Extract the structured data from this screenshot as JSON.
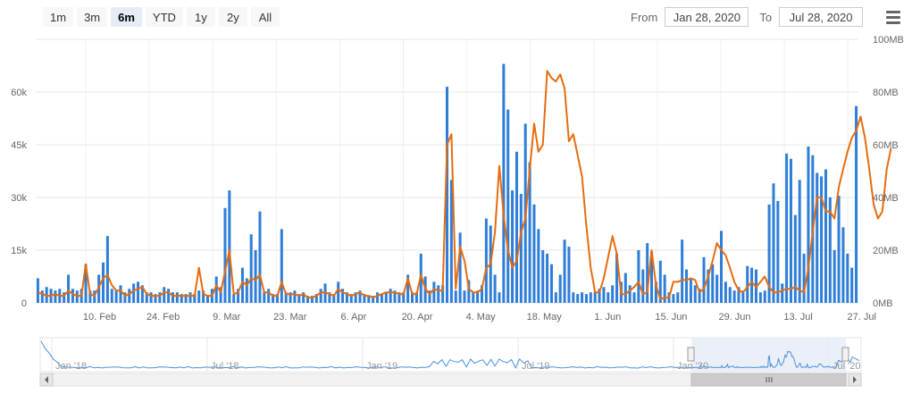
{
  "range_selector": {
    "buttons": [
      {
        "label": "1m",
        "active": false
      },
      {
        "label": "3m",
        "active": false
      },
      {
        "label": "6m",
        "active": true
      },
      {
        "label": "YTD",
        "active": false
      },
      {
        "label": "1y",
        "active": false
      },
      {
        "label": "2y",
        "active": false
      },
      {
        "label": "All",
        "active": false
      }
    ]
  },
  "date_range": {
    "from_label": "From",
    "from_value": "Jan 28, 2020",
    "to_label": "To",
    "to_value": "Jul 28, 2020"
  },
  "menu_icon": "hamburger-menu-icon",
  "colors": {
    "bars": "#2f7ed8",
    "line": "#e66c0f",
    "navigator_line": "#4a90d9",
    "navigator_mask": "#e6ecf6"
  },
  "chart_data": {
    "type": "bar",
    "title": "",
    "x_start": "2020-01-28",
    "x_end": "2020-07-28",
    "x_tick_labels": [
      "10. Feb",
      "24. Feb",
      "9. Mar",
      "23. Mar",
      "6. Apr",
      "20. Apr",
      "4. May",
      "18. May",
      "1. Jun",
      "15. Jun",
      "29. Jun",
      "13. Jul",
      "27. Jul"
    ],
    "y_left": {
      "ticks": [
        "0",
        "15k",
        "30k",
        "45k",
        "60k"
      ],
      "ylim": [
        0,
        75000
      ]
    },
    "y_right": {
      "ticks": [
        "0MB",
        "20MB",
        "40MB",
        "60MB",
        "80MB",
        "100MB"
      ],
      "ylim": [
        0,
        100
      ]
    },
    "series": [
      {
        "type": "bar",
        "axis": "left",
        "values": [
          7000,
          3500,
          4500,
          4000,
          3500,
          4000,
          3000,
          8000,
          4000,
          3500,
          4000,
          11000,
          3500,
          3500,
          8000,
          11500,
          19000,
          4000,
          3500,
          5000,
          3000,
          4000,
          5500,
          6000,
          5000,
          3000,
          3000,
          2500,
          3000,
          4500,
          4000,
          3000,
          3000,
          2500,
          2500,
          3000,
          2500,
          3500,
          3500,
          2000,
          4000,
          7500,
          4500,
          27000,
          32000,
          2500,
          4000,
          10000,
          7000,
          19500,
          15000,
          26000,
          3000,
          4000,
          2500,
          2500,
          21000,
          3000,
          3000,
          3500,
          2500,
          3000,
          2000,
          2000,
          2500,
          4000,
          5500,
          3000,
          2500,
          6000,
          4000,
          3000,
          2500,
          3000,
          3500,
          2500,
          2000,
          2000,
          3000,
          2500,
          3000,
          4000,
          3500,
          3000,
          3000,
          8000,
          3000,
          3000,
          14000,
          7500,
          3500,
          6000,
          5000,
          5000,
          61500,
          35000,
          3500,
          20000,
          3500,
          6500,
          3000,
          3500,
          5000,
          24000,
          22000,
          8000,
          3000,
          68000,
          55000,
          32000,
          43000,
          31000,
          51000,
          40000,
          28000,
          21000,
          15000,
          14000,
          11000,
          3000,
          8000,
          18000,
          16000,
          3000,
          2500,
          3000,
          2500,
          3000,
          3000,
          4000,
          4500,
          3000,
          5000,
          14000,
          6000,
          8500,
          5000,
          3000,
          15000,
          9500,
          17000,
          14500,
          6000,
          12000,
          8000,
          3000,
          2500,
          3000,
          18000,
          9500,
          7000,
          5000,
          4000,
          13000,
          9500,
          11000,
          8000,
          20500,
          6000,
          4500,
          3500,
          4500,
          3500,
          10500,
          10000,
          9500,
          3000,
          3500,
          28000,
          34000,
          29000,
          5500,
          42500,
          41000,
          25000,
          35000,
          14000,
          44500,
          42000,
          37000,
          36000,
          38000,
          30000,
          15000,
          30500,
          21500,
          14000,
          10000,
          56000
        ]
      },
      {
        "type": "line",
        "axis": "left",
        "values": [
          3000,
          2500,
          2000,
          2000,
          2500,
          2000,
          2000,
          3500,
          2500,
          2000,
          2000,
          11000,
          2500,
          2000,
          4500,
          7000,
          8000,
          5000,
          3500,
          3500,
          2000,
          2500,
          3500,
          4000,
          4500,
          2500,
          2000,
          2000,
          2000,
          3000,
          3000,
          2000,
          2000,
          2000,
          2000,
          2000,
          2000,
          10000,
          2500,
          2000,
          2000,
          5000,
          3000,
          9000,
          15000,
          2500,
          3000,
          6000,
          5000,
          7000,
          6500,
          8000,
          3000,
          3000,
          2000,
          2000,
          6000,
          2500,
          2500,
          2500,
          2000,
          2500,
          1500,
          1500,
          2000,
          3000,
          3000,
          2500,
          2000,
          4000,
          3000,
          2500,
          2000,
          2500,
          3000,
          2000,
          2000,
          1500,
          2000,
          2500,
          3000,
          3000,
          3000,
          2500,
          2500,
          7000,
          2500,
          2500,
          8000,
          4000,
          2500,
          4000,
          3500,
          3500,
          45000,
          48000,
          4000,
          16000,
          12000,
          4000,
          3000,
          3000,
          4000,
          10000,
          11000,
          20000,
          39000,
          25000,
          15000,
          10000,
          12000,
          20000,
          24000,
          38000,
          51000,
          43000,
          45000,
          66000,
          64000,
          63000,
          65000,
          61000,
          46000,
          48000,
          42000,
          36000,
          22000,
          10000,
          3000,
          3000,
          7000,
          13000,
          19000,
          14000,
          2500,
          2500,
          3500,
          4500,
          6000,
          2500,
          3000,
          15000,
          5000,
          1000,
          1500,
          1500,
          6000,
          6000,
          6500,
          6500,
          7000,
          6500,
          3000,
          4000,
          7500,
          12000,
          17000,
          15000,
          13500,
          10000,
          6000,
          3500,
          3000,
          4500,
          6000,
          4500,
          6000,
          7500,
          4500,
          3000,
          3000,
          3500,
          4000,
          4000,
          4500,
          3500,
          3000,
          10000,
          20000,
          30000,
          30000,
          26000,
          26000,
          24000,
          33000,
          38000,
          43000,
          47000,
          49000,
          53000,
          47000,
          38000,
          28000,
          24000,
          26000,
          38000,
          44000
        ]
      }
    ],
    "navigator": {
      "x_tick_labels": [
        "Jan '18",
        "Jul '18",
        "Jan '19",
        "Jul '19",
        "Jan '20",
        "Jul '20"
      ],
      "selected_range": [
        "2020-01-28",
        "2020-07-28"
      ]
    }
  }
}
